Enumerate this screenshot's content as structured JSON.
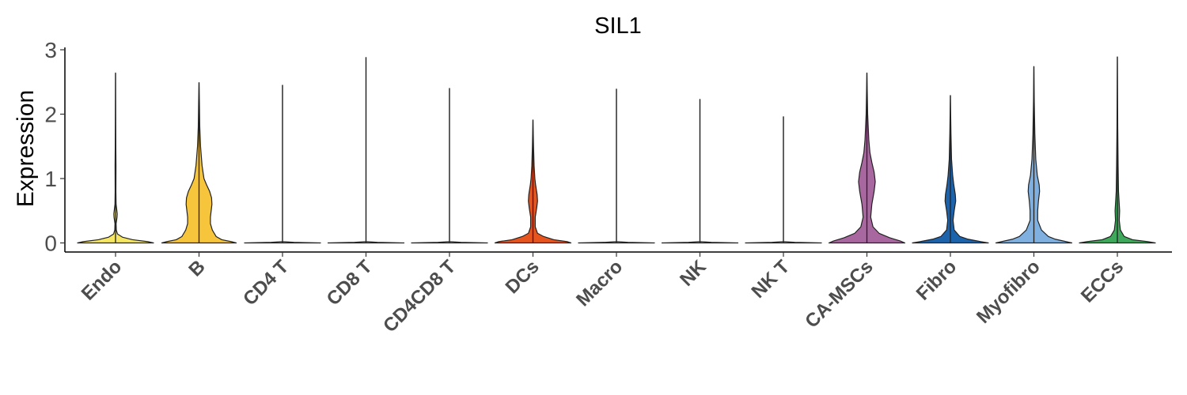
{
  "chart_data": {
    "type": "violin",
    "title": "SIL1",
    "xlabel": "",
    "ylabel": "Expression",
    "ylim": [
      -0.14,
      3.06
    ],
    "yticks": [
      0,
      1,
      2,
      3
    ],
    "grid": false,
    "legend": "none",
    "categories": [
      "Endo",
      "B",
      "CD4 T",
      "CD8 T",
      "CD4CD8 T",
      "DCs",
      "Macro",
      "NK",
      "NK T",
      "CA-MSCs",
      "Fibro",
      "Myofibro",
      "ECCs"
    ],
    "series": [
      {
        "category": "Endo",
        "color": "#f5e663",
        "max": 2.64,
        "profile": [
          [
            0,
            1.0
          ],
          [
            0.02,
            0.85
          ],
          [
            0.05,
            0.45
          ],
          [
            0.09,
            0.18
          ],
          [
            0.14,
            0.05
          ],
          [
            0.2,
            0.02
          ],
          [
            0.3,
            0.015
          ],
          [
            0.4,
            0.04
          ],
          [
            0.45,
            0.045
          ],
          [
            0.5,
            0.035
          ],
          [
            0.6,
            0.015
          ],
          [
            0.8,
            0.01
          ],
          [
            1.2,
            0.012
          ],
          [
            1.5,
            0.008
          ],
          [
            2.0,
            0.004
          ],
          [
            2.64,
            0
          ]
        ]
      },
      {
        "category": "B",
        "color": "#f6c53c",
        "max": 2.49,
        "profile": [
          [
            0,
            0.98
          ],
          [
            0.02,
            0.85
          ],
          [
            0.05,
            0.6
          ],
          [
            0.1,
            0.45
          ],
          [
            0.2,
            0.35
          ],
          [
            0.3,
            0.3
          ],
          [
            0.4,
            0.3
          ],
          [
            0.5,
            0.32
          ],
          [
            0.6,
            0.34
          ],
          [
            0.7,
            0.33
          ],
          [
            0.8,
            0.28
          ],
          [
            0.9,
            0.2
          ],
          [
            1.0,
            0.13
          ],
          [
            1.2,
            0.08
          ],
          [
            1.5,
            0.04
          ],
          [
            1.8,
            0.02
          ],
          [
            2.2,
            0.01
          ],
          [
            2.49,
            0
          ]
        ]
      },
      {
        "category": "CD4 T",
        "color": "#f2f2f2",
        "max": 2.45,
        "profile": [
          [
            0,
            1.0
          ],
          [
            0.01,
            0.3
          ],
          [
            0.02,
            0
          ],
          [
            2.45,
            0
          ]
        ]
      },
      {
        "category": "CD8 T",
        "color": "#f2f2f2",
        "max": 2.88,
        "profile": [
          [
            0,
            1.0
          ],
          [
            0.01,
            0.3
          ],
          [
            0.02,
            0
          ],
          [
            2.88,
            0
          ]
        ]
      },
      {
        "category": "CD4CD8 T",
        "color": "#f2f2f2",
        "max": 2.4,
        "profile": [
          [
            0,
            1.0
          ],
          [
            0.01,
            0.3
          ],
          [
            0.02,
            0
          ],
          [
            2.4,
            0
          ]
        ]
      },
      {
        "category": "DCs",
        "color": "#e8541d",
        "max": 1.91,
        "profile": [
          [
            0,
            1.0
          ],
          [
            0.02,
            0.9
          ],
          [
            0.05,
            0.55
          ],
          [
            0.1,
            0.28
          ],
          [
            0.15,
            0.12
          ],
          [
            0.25,
            0.06
          ],
          [
            0.4,
            0.06
          ],
          [
            0.55,
            0.1
          ],
          [
            0.65,
            0.12
          ],
          [
            0.75,
            0.11
          ],
          [
            0.9,
            0.07
          ],
          [
            1.0,
            0.05
          ],
          [
            1.2,
            0.03
          ],
          [
            1.5,
            0.015
          ],
          [
            1.91,
            0
          ]
        ]
      },
      {
        "category": "Macro",
        "color": "#f2f2f2",
        "max": 2.39,
        "profile": [
          [
            0,
            1.0
          ],
          [
            0.01,
            0.3
          ],
          [
            0.02,
            0
          ],
          [
            2.39,
            0
          ]
        ]
      },
      {
        "category": "NK",
        "color": "#f2f2f2",
        "max": 2.23,
        "profile": [
          [
            0,
            1.0
          ],
          [
            0.01,
            0.3
          ],
          [
            0.02,
            0
          ],
          [
            2.23,
            0
          ]
        ]
      },
      {
        "category": "NK T",
        "color": "#f2f2f2",
        "max": 1.96,
        "profile": [
          [
            0,
            1.0
          ],
          [
            0.01,
            0.3
          ],
          [
            0.02,
            0
          ],
          [
            1.96,
            0
          ]
        ]
      },
      {
        "category": "CA-MSCs",
        "color": "#a8689f",
        "max": 2.64,
        "profile": [
          [
            0,
            1.0
          ],
          [
            0.03,
            0.88
          ],
          [
            0.08,
            0.6
          ],
          [
            0.15,
            0.32
          ],
          [
            0.25,
            0.16
          ],
          [
            0.4,
            0.1
          ],
          [
            0.6,
            0.13
          ],
          [
            0.8,
            0.19
          ],
          [
            0.95,
            0.22
          ],
          [
            1.1,
            0.19
          ],
          [
            1.25,
            0.13
          ],
          [
            1.4,
            0.08
          ],
          [
            1.6,
            0.05
          ],
          [
            2.0,
            0.02
          ],
          [
            2.64,
            0
          ]
        ]
      },
      {
        "category": "Fibro",
        "color": "#1d63ac",
        "max": 2.29,
        "profile": [
          [
            0,
            1.0
          ],
          [
            0.02,
            0.8
          ],
          [
            0.06,
            0.45
          ],
          [
            0.1,
            0.25
          ],
          [
            0.2,
            0.1
          ],
          [
            0.35,
            0.07
          ],
          [
            0.5,
            0.1
          ],
          [
            0.65,
            0.14
          ],
          [
            0.75,
            0.13
          ],
          [
            0.9,
            0.09
          ],
          [
            1.05,
            0.06
          ],
          [
            1.3,
            0.03
          ],
          [
            1.7,
            0.015
          ],
          [
            2.29,
            0
          ]
        ]
      },
      {
        "category": "Myofibro",
        "color": "#7fb0df",
        "max": 2.74,
        "profile": [
          [
            0,
            1.0
          ],
          [
            0.02,
            0.85
          ],
          [
            0.06,
            0.55
          ],
          [
            0.1,
            0.38
          ],
          [
            0.2,
            0.2
          ],
          [
            0.35,
            0.1
          ],
          [
            0.5,
            0.1
          ],
          [
            0.65,
            0.12
          ],
          [
            0.8,
            0.15
          ],
          [
            0.9,
            0.14
          ],
          [
            1.05,
            0.09
          ],
          [
            1.3,
            0.05
          ],
          [
            1.7,
            0.025
          ],
          [
            2.2,
            0.01
          ],
          [
            2.74,
            0
          ]
        ]
      },
      {
        "category": "ECCs",
        "color": "#3fa95b",
        "max": 2.89,
        "profile": [
          [
            0,
            1.0
          ],
          [
            0.02,
            0.8
          ],
          [
            0.05,
            0.4
          ],
          [
            0.1,
            0.18
          ],
          [
            0.2,
            0.08
          ],
          [
            0.35,
            0.05
          ],
          [
            0.5,
            0.06
          ],
          [
            0.6,
            0.05
          ],
          [
            0.8,
            0.03
          ],
          [
            1.2,
            0.02
          ],
          [
            1.8,
            0.01
          ],
          [
            2.89,
            0
          ]
        ]
      }
    ]
  }
}
